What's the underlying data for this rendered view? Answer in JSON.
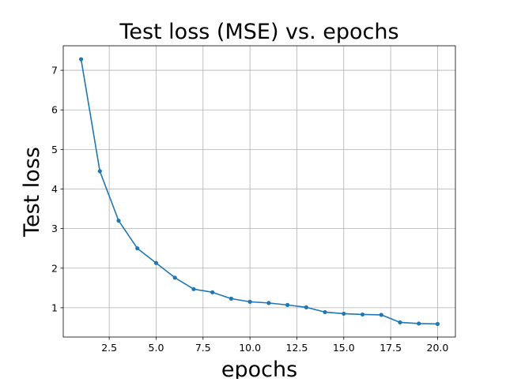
{
  "chart_data": {
    "type": "line",
    "title": "Test loss (MSE) vs. epochs",
    "xlabel": "epochs",
    "ylabel": "Test loss",
    "xlim": [
      0.05,
      20.95
    ],
    "ylim": [
      0.26,
      7.62
    ],
    "x_ticks": [
      2.5,
      5.0,
      7.5,
      10.0,
      12.5,
      15.0,
      17.5,
      20.0
    ],
    "x_tick_labels": [
      "2.5",
      "5.0",
      "7.5",
      "10.0",
      "12.5",
      "15.0",
      "17.5",
      "20.0"
    ],
    "y_ticks": [
      1,
      2,
      3,
      4,
      5,
      6,
      7
    ],
    "y_tick_labels": [
      "1",
      "2",
      "3",
      "4",
      "5",
      "6",
      "7"
    ],
    "grid": true,
    "series": [
      {
        "color": "#1f77b4",
        "marker": "circle",
        "x": [
          1,
          2,
          3,
          4,
          5,
          6,
          7,
          8,
          9,
          10,
          11,
          12,
          13,
          14,
          15,
          16,
          17,
          18,
          19,
          20
        ],
        "values": [
          7.28,
          4.45,
          3.2,
          2.5,
          2.13,
          1.76,
          1.47,
          1.39,
          1.23,
          1.15,
          1.12,
          1.07,
          1.01,
          0.89,
          0.85,
          0.83,
          0.82,
          0.63,
          0.6,
          0.59
        ]
      }
    ]
  }
}
